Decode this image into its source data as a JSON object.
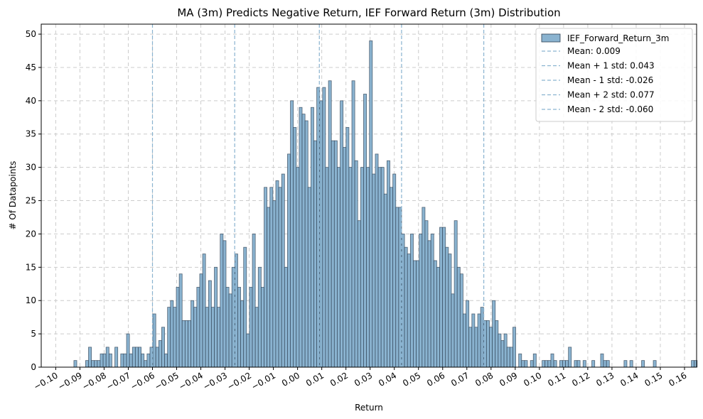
{
  "chart_data": {
    "type": "histogram",
    "title": "MA (3m) Predicts Negative Return, IEF Forward Return (3m) Distribution",
    "xlabel": "Return",
    "ylabel": "# Of Datapoints",
    "xlim": [
      -0.106,
      0.165
    ],
    "ylim": [
      0,
      51.5
    ],
    "grid": true,
    "legend_position": "top-right",
    "bar_color": "#8ab3d0",
    "bar_edge_color": "#2c3e50",
    "line_color": "#8ab3d0",
    "bin_start": -0.0925,
    "bin_width": 0.00121,
    "bars": [
      1,
      0,
      0,
      0,
      1,
      3,
      1,
      1,
      1,
      2,
      2,
      3,
      2,
      0,
      3,
      0,
      2,
      2,
      5,
      2,
      3,
      3,
      3,
      2,
      1,
      2,
      3,
      8,
      3,
      4,
      6,
      2,
      9,
      10,
      9,
      12,
      14,
      7,
      7,
      7,
      10,
      9,
      12,
      14,
      17,
      9,
      13,
      9,
      15,
      9,
      20,
      19,
      12,
      11,
      15,
      17,
      12,
      10,
      18,
      5,
      12,
      20,
      9,
      15,
      12,
      27,
      24,
      27,
      25,
      28,
      27,
      29,
      15,
      32,
      40,
      36,
      30,
      39,
      38,
      37,
      27,
      39,
      34,
      42,
      40,
      42,
      30,
      43,
      34,
      34,
      30,
      40,
      33,
      36,
      30,
      43,
      31,
      22,
      30,
      41,
      30,
      49,
      29,
      32,
      30,
      30,
      26,
      31,
      27,
      29,
      24,
      24,
      20,
      18,
      17,
      20,
      16,
      16,
      20,
      24,
      22,
      19,
      20,
      16,
      15,
      21,
      21,
      18,
      17,
      11,
      22,
      15,
      14,
      8,
      10,
      6,
      8,
      6,
      8,
      9,
      7,
      7,
      6,
      10,
      7,
      5,
      4,
      5,
      3,
      3,
      6,
      0,
      2,
      1,
      1,
      0,
      1,
      2,
      0,
      0,
      1,
      1,
      1,
      2,
      1,
      0,
      1,
      1,
      1,
      3,
      0,
      1,
      1,
      0,
      1,
      0,
      0,
      1,
      0,
      0,
      2,
      1,
      1,
      0,
      0,
      0,
      0,
      0,
      1,
      0,
      1,
      0,
      0,
      0,
      1,
      0,
      0,
      0,
      1,
      0,
      0,
      0,
      0,
      0,
      0,
      0,
      0,
      0,
      0,
      0,
      0,
      1,
      1,
      0,
      0,
      0,
      0,
      1
    ],
    "xticks": [
      -0.1,
      -0.09,
      -0.08,
      -0.07,
      -0.06,
      -0.05,
      -0.04,
      -0.03,
      -0.02,
      -0.01,
      0.0,
      0.01,
      0.02,
      0.03,
      0.04,
      0.05,
      0.06,
      0.07,
      0.08,
      0.09,
      0.1,
      0.11,
      0.12,
      0.13,
      0.14,
      0.15,
      0.16
    ],
    "xtick_labels": [
      "−0.10",
      "−0.09",
      "−0.08",
      "−0.07",
      "−0.06",
      "−0.05",
      "−0.04",
      "−0.03",
      "−0.02",
      "−0.01",
      "0.00",
      "0.01",
      "0.02",
      "0.03",
      "0.04",
      "0.05",
      "0.06",
      "0.07",
      "0.08",
      "0.09",
      "0.10",
      "0.11",
      "0.12",
      "0.13",
      "0.14",
      "0.15",
      "0.16"
    ],
    "yticks": [
      0,
      5,
      10,
      15,
      20,
      25,
      30,
      35,
      40,
      45,
      50
    ],
    "ytick_labels": [
      "0",
      "5",
      "10",
      "15",
      "20",
      "25",
      "30",
      "35",
      "40",
      "45",
      "50"
    ],
    "vlines": [
      {
        "name": "Mean: 0.009",
        "x": 0.009
      },
      {
        "name": "Mean + 1 std: 0.043",
        "x": 0.043
      },
      {
        "name": "Mean - 1 std: -0.026",
        "x": -0.026
      },
      {
        "name": "Mean + 2 std: 0.077",
        "x": 0.077
      },
      {
        "name": "Mean - 2 std: -0.060",
        "x": -0.06
      }
    ],
    "series_name": "IEF_Forward_Return_3m"
  }
}
